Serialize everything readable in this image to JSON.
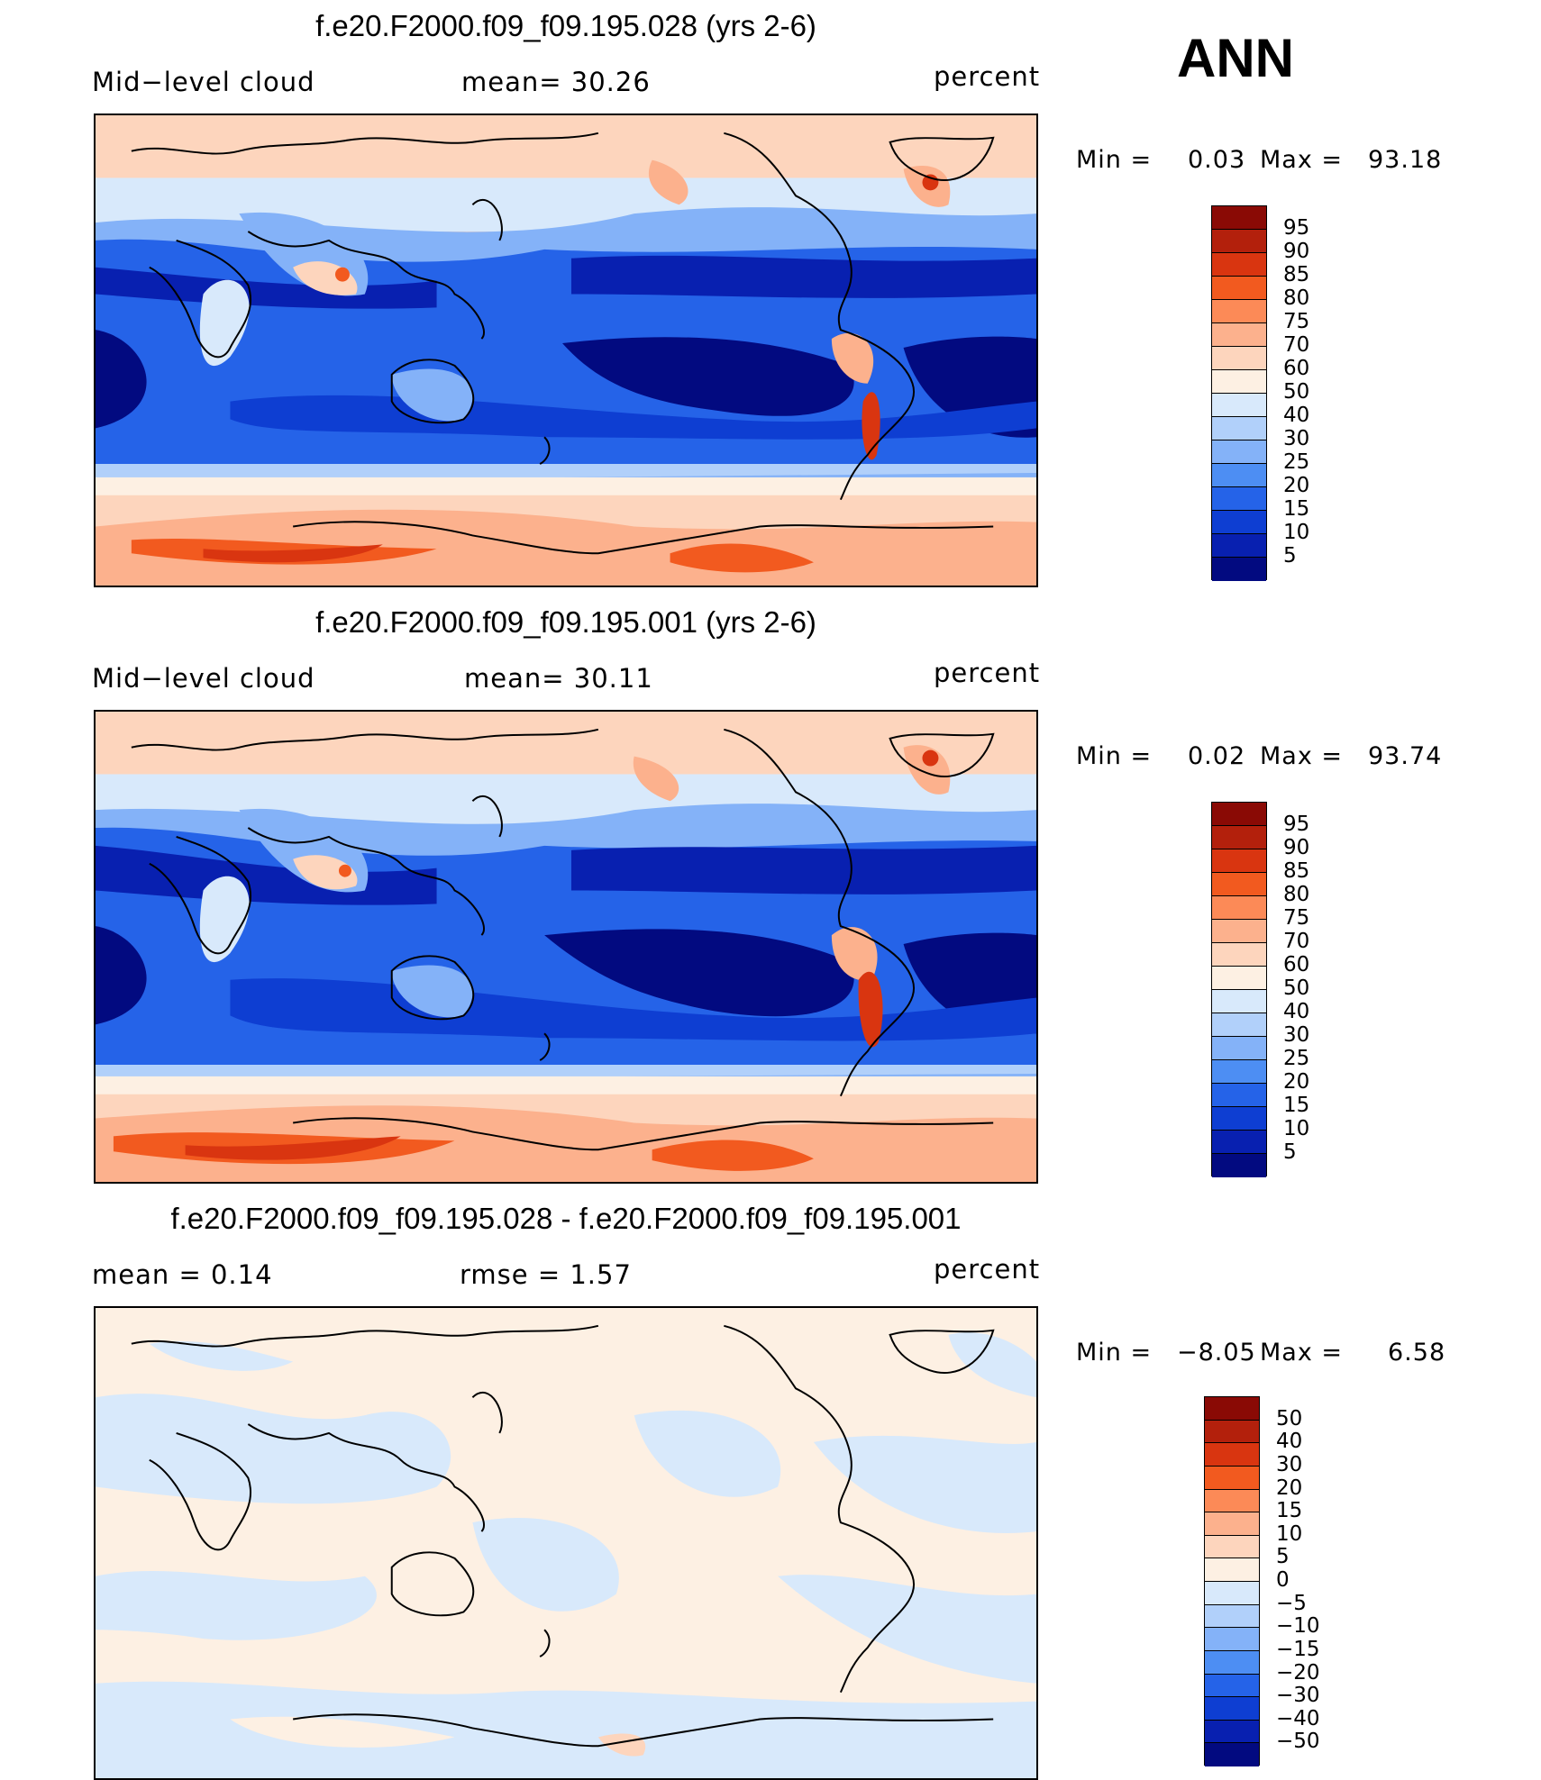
{
  "season": "ANN",
  "panels": [
    {
      "title": "f.e20.F2000.f09_f09.195.028 (yrs 2-6)",
      "left_text": "Mid−level  cloud",
      "mid_text": "mean=   30.26",
      "units": "percent",
      "min_label": "Min  =",
      "min_value": "0.03",
      "max_label": "Max  =",
      "max_value": "93.18",
      "kind": "abs"
    },
    {
      "title": "f.e20.F2000.f09_f09.195.001 (yrs 2-6)",
      "left_text": "Mid−level  cloud",
      "mid_text": "mean=   30.11",
      "units": "percent",
      "min_label": "Min  =",
      "min_value": "0.02",
      "max_label": "Max  =",
      "max_value": "93.74",
      "kind": "abs"
    },
    {
      "title": "f.e20.F2000.f09_f09.195.028 - f.e20.F2000.f09_f09.195.001",
      "left_text": "mean  =     0.14",
      "mid_text": "rmse  =     1.57",
      "units": "percent",
      "min_label": "Min  =",
      "min_value": "−8.05",
      "max_label": "Max  =",
      "max_value": "6.58",
      "kind": "diff"
    }
  ],
  "colorbars": {
    "abs": {
      "labels": [
        "95",
        "90",
        "85",
        "80",
        "75",
        "70",
        "60",
        "50",
        "40",
        "30",
        "25",
        "20",
        "15",
        "10",
        "5"
      ],
      "colors": [
        "#8a0a05",
        "#b3200c",
        "#d93510",
        "#f25a1f",
        "#fc8a57",
        "#fcb18d",
        "#fdd5bd",
        "#fdf0e3",
        "#d8e9fb",
        "#b1d0fa",
        "#84b2f8",
        "#4d8ef3",
        "#2563e8",
        "#0e3ed2",
        "#0820b0",
        "#020a80"
      ]
    },
    "diff": {
      "labels": [
        "50",
        "40",
        "30",
        "20",
        "15",
        "10",
        "5",
        "0",
        "−5",
        "−10",
        "−15",
        "−20",
        "−30",
        "−40",
        "−50"
      ],
      "colors": [
        "#8a0a05",
        "#b3200c",
        "#d93510",
        "#f25a1f",
        "#fc8a57",
        "#fcb18d",
        "#fdd5bd",
        "#fdf0e3",
        "#d8e9fb",
        "#b1d0fa",
        "#84b2f8",
        "#4d8ef3",
        "#2563e8",
        "#0e3ed2",
        "#0820b0",
        "#020a80"
      ]
    }
  }
}
